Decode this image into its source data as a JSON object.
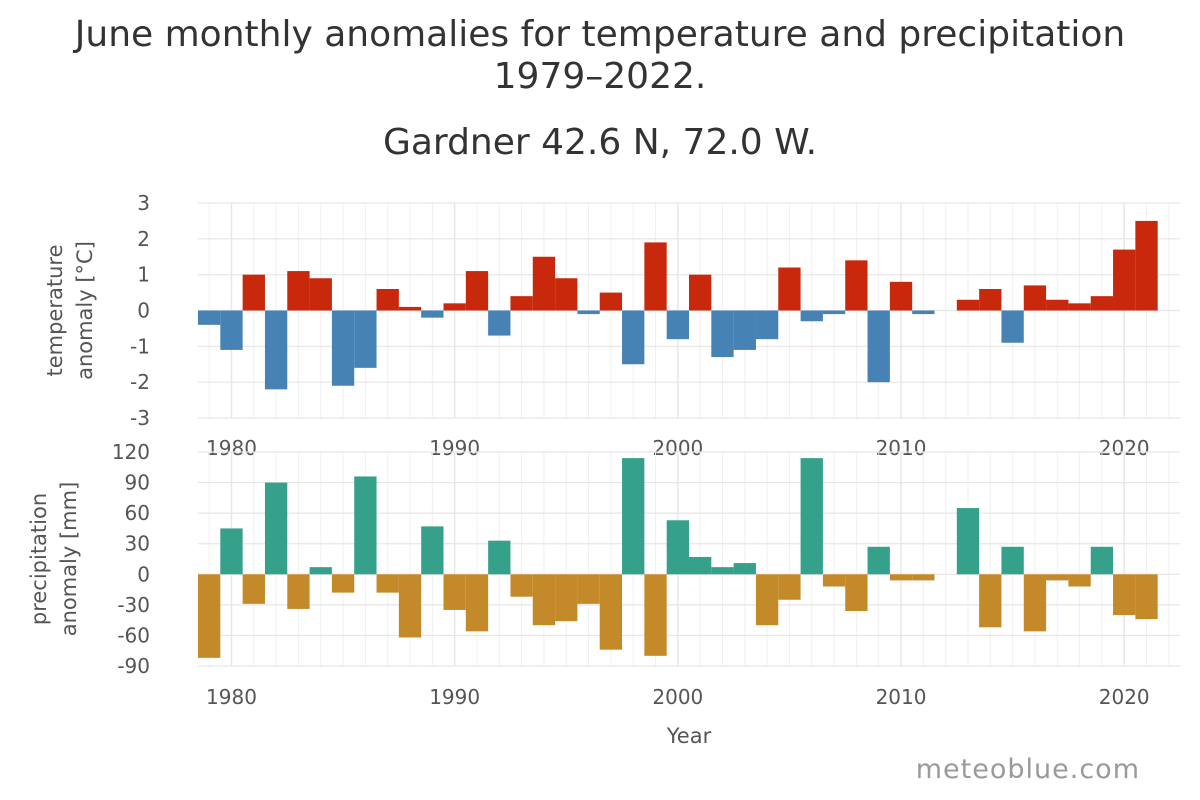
{
  "chart_title": {
    "line1": "June monthly anomalies for temperature and precipitation",
    "line2": "1979–2022.",
    "subtitle": "Gardner 42.6 N, 72.0 W."
  },
  "watermark": "meteoblue.com",
  "colors": {
    "temp_positive": "#c8280c",
    "temp_negative": "#4682b4",
    "precip_positive": "#36a18b",
    "precip_negative": "#c48a2a",
    "grid": "#e6e6e6",
    "axis_text": "#555555"
  },
  "chart_data": [
    {
      "type": "bar",
      "name": "temperature",
      "ylabel_lines": [
        "temperature",
        "anomaly [°C]"
      ],
      "xlabel": "",
      "ylim": [
        -3,
        3
      ],
      "yticks": [
        3,
        2,
        1,
        0,
        -1,
        -2,
        -3
      ],
      "xlim": [
        1978.5,
        2022.5
      ],
      "xticks": [
        1980,
        1990,
        2000,
        2010,
        2020
      ],
      "grid": true,
      "x": [
        1979,
        1980,
        1981,
        1982,
        1983,
        1984,
        1985,
        1986,
        1987,
        1988,
        1989,
        1990,
        1991,
        1992,
        1993,
        1994,
        1995,
        1996,
        1997,
        1998,
        1999,
        2000,
        2001,
        2002,
        2003,
        2004,
        2005,
        2006,
        2007,
        2008,
        2009,
        2010,
        2011,
        2012,
        2013,
        2014,
        2015,
        2016,
        2017,
        2018,
        2019,
        2020,
        2021
      ],
      "values": [
        -0.4,
        -1.1,
        1.0,
        -2.2,
        1.1,
        0.9,
        -2.1,
        -1.6,
        0.6,
        0.1,
        -0.2,
        0.2,
        1.1,
        -0.7,
        0.4,
        1.5,
        0.9,
        -0.1,
        0.5,
        -1.5,
        1.9,
        -0.8,
        1.0,
        -1.3,
        -1.1,
        -0.8,
        1.2,
        -0.3,
        -0.1,
        1.4,
        -2.0,
        0.8,
        -0.1,
        0.0,
        0.3,
        0.6,
        -0.9,
        0.7,
        0.3,
        0.2,
        0.4,
        1.7,
        2.5
      ]
    },
    {
      "type": "bar",
      "name": "precipitation",
      "ylabel_lines": [
        "precipitation",
        "anomaly [mm]"
      ],
      "xlabel": "Year",
      "ylim": [
        -90,
        120
      ],
      "yticks": [
        120,
        90,
        60,
        30,
        0,
        -30,
        -60,
        -90
      ],
      "xlim": [
        1978.5,
        2022.5
      ],
      "xticks": [
        1980,
        1990,
        2000,
        2010,
        2020
      ],
      "grid": true,
      "x": [
        1979,
        1980,
        1981,
        1982,
        1983,
        1984,
        1985,
        1986,
        1987,
        1988,
        1989,
        1990,
        1991,
        1992,
        1993,
        1994,
        1995,
        1996,
        1997,
        1998,
        1999,
        2000,
        2001,
        2002,
        2003,
        2004,
        2005,
        2006,
        2007,
        2008,
        2009,
        2010,
        2011,
        2012,
        2013,
        2014,
        2015,
        2016,
        2017,
        2018,
        2019,
        2020,
        2021
      ],
      "values": [
        -82,
        45,
        -29,
        90,
        -34,
        7,
        -18,
        96,
        -18,
        -62,
        47,
        -35,
        -56,
        33,
        -22,
        -50,
        -46,
        -29,
        -74,
        114,
        -80,
        53,
        17,
        7,
        11,
        -50,
        -25,
        114,
        -12,
        -36,
        27,
        -6,
        -6,
        0,
        65,
        -52,
        27,
        -56,
        -6,
        -12,
        27,
        -40,
        -44
      ]
    }
  ]
}
